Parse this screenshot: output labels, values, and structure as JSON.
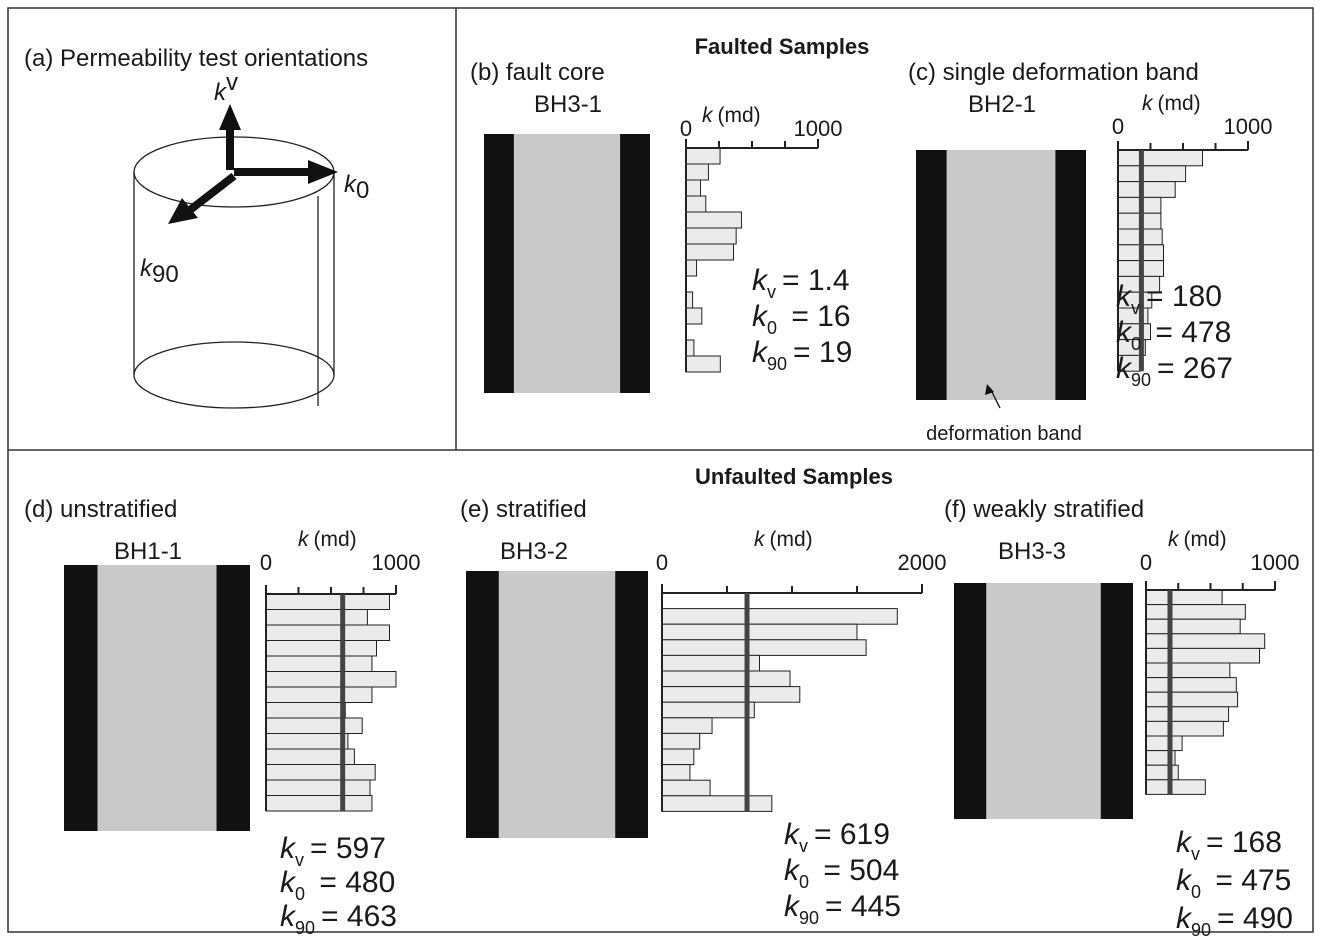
{
  "panel_a": {
    "title": "(a) Permeability test orientations",
    "labels": [
      {
        "symbol": "k",
        "subscript": "v"
      },
      {
        "symbol": "k",
        "subscript": "0"
      },
      {
        "symbol": "k",
        "subscript": "90"
      }
    ]
  },
  "sections": [
    "Faulted Samples",
    "Unfaulted Samples"
  ],
  "chart_data": [
    {
      "type": "bar",
      "orientation": "horizontal",
      "title": "(b) fault core",
      "sample": "BH3-1",
      "xlabel": {
        "symbol": "k",
        "unit": "(md)"
      },
      "xlim": [
        0,
        1000
      ],
      "xticks": [
        0,
        1000
      ],
      "minor_xticks": [
        250,
        500,
        750
      ],
      "values": [
        258,
        170,
        110,
        150,
        420,
        380,
        360,
        80,
        0,
        50,
        120,
        0,
        60,
        260
      ],
      "color": "#ebebeb",
      "stats": [
        {
          "symbol": "k",
          "subscript": "v",
          "text": "= 1.4"
        },
        {
          "symbol": "k",
          "subscript": "0",
          "text": " = 16"
        },
        {
          "symbol": "k",
          "subscript": "90",
          "text": "= 19"
        }
      ]
    },
    {
      "type": "bar",
      "orientation": "horizontal",
      "title": "(c) single deformation band",
      "sample": "BH2-1",
      "xlabel": {
        "symbol": "k",
        "unit": "(md)"
      },
      "xlim": [
        0,
        1000
      ],
      "xticks": [
        0,
        1000
      ],
      "minor_xticks": [
        250,
        500,
        750
      ],
      "values": [
        650,
        520,
        440,
        330,
        330,
        340,
        350,
        350,
        320,
        260,
        230,
        250,
        210,
        170
      ],
      "color": "#ebebeb",
      "reference_line": 180,
      "annotation": "deformation band",
      "stats": [
        {
          "symbol": "k",
          "subscript": "v",
          "text": "= 180"
        },
        {
          "symbol": "k",
          "subscript": "0",
          "text": " = 478"
        },
        {
          "symbol": "k",
          "subscript": "90",
          "text": "= 267"
        }
      ]
    },
    {
      "type": "bar",
      "orientation": "horizontal",
      "title": "(d) unstratified",
      "sample": "BH1-1",
      "xlabel": {
        "symbol": "k",
        "unit": "(md)"
      },
      "xlim": [
        0,
        1000
      ],
      "xticks": [
        0,
        1000
      ],
      "minor_xticks": [
        250,
        500,
        750
      ],
      "values": [
        950,
        780,
        950,
        850,
        815,
        1000,
        815,
        610,
        740,
        630,
        680,
        840,
        800,
        815
      ],
      "color": "#ebebeb",
      "reference_line": 590,
      "stats": [
        {
          "symbol": "k",
          "subscript": "v",
          "text": "= 597"
        },
        {
          "symbol": "k",
          "subscript": "0",
          "text": " = 480"
        },
        {
          "symbol": "k",
          "subscript": "90",
          "text": "= 463"
        }
      ]
    },
    {
      "type": "bar",
      "orientation": "horizontal",
      "title": "(e) stratified",
      "sample": "BH3-2",
      "xlabel": {
        "symbol": "k",
        "unit": "(md)"
      },
      "xlim": [
        0,
        2000
      ],
      "xticks": [
        0,
        2000
      ],
      "minor_xticks": [
        500,
        1000,
        1500
      ],
      "values": [
        0,
        1810,
        1500,
        1570,
        750,
        985,
        1060,
        710,
        385,
        290,
        245,
        215,
        370,
        845
      ],
      "color": "#ebebeb",
      "reference_line": 654,
      "stats": [
        {
          "symbol": "k",
          "subscript": "v",
          "text": "= 619"
        },
        {
          "symbol": "k",
          "subscript": "0",
          "text": " = 504"
        },
        {
          "symbol": "k",
          "subscript": "90",
          "text": "= 445"
        }
      ]
    },
    {
      "type": "bar",
      "orientation": "horizontal",
      "title": "(f) weakly stratified",
      "sample": "BH3-3",
      "xlabel": {
        "symbol": "k",
        "unit": "(md)"
      },
      "xlim": [
        0,
        1000
      ],
      "xticks": [
        0,
        1000
      ],
      "minor_xticks": [
        250,
        500,
        750
      ],
      "values": [
        590,
        770,
        730,
        920,
        880,
        650,
        700,
        710,
        640,
        600,
        280,
        225,
        250,
        460
      ],
      "color": "#ebebeb",
      "reference_line": 186,
      "stats": [
        {
          "symbol": "k",
          "subscript": "v",
          "text": "= 168"
        },
        {
          "symbol": "k",
          "subscript": "0",
          "text": " = 475"
        },
        {
          "symbol": "k",
          "subscript": "90",
          "text": "= 490"
        }
      ]
    }
  ]
}
